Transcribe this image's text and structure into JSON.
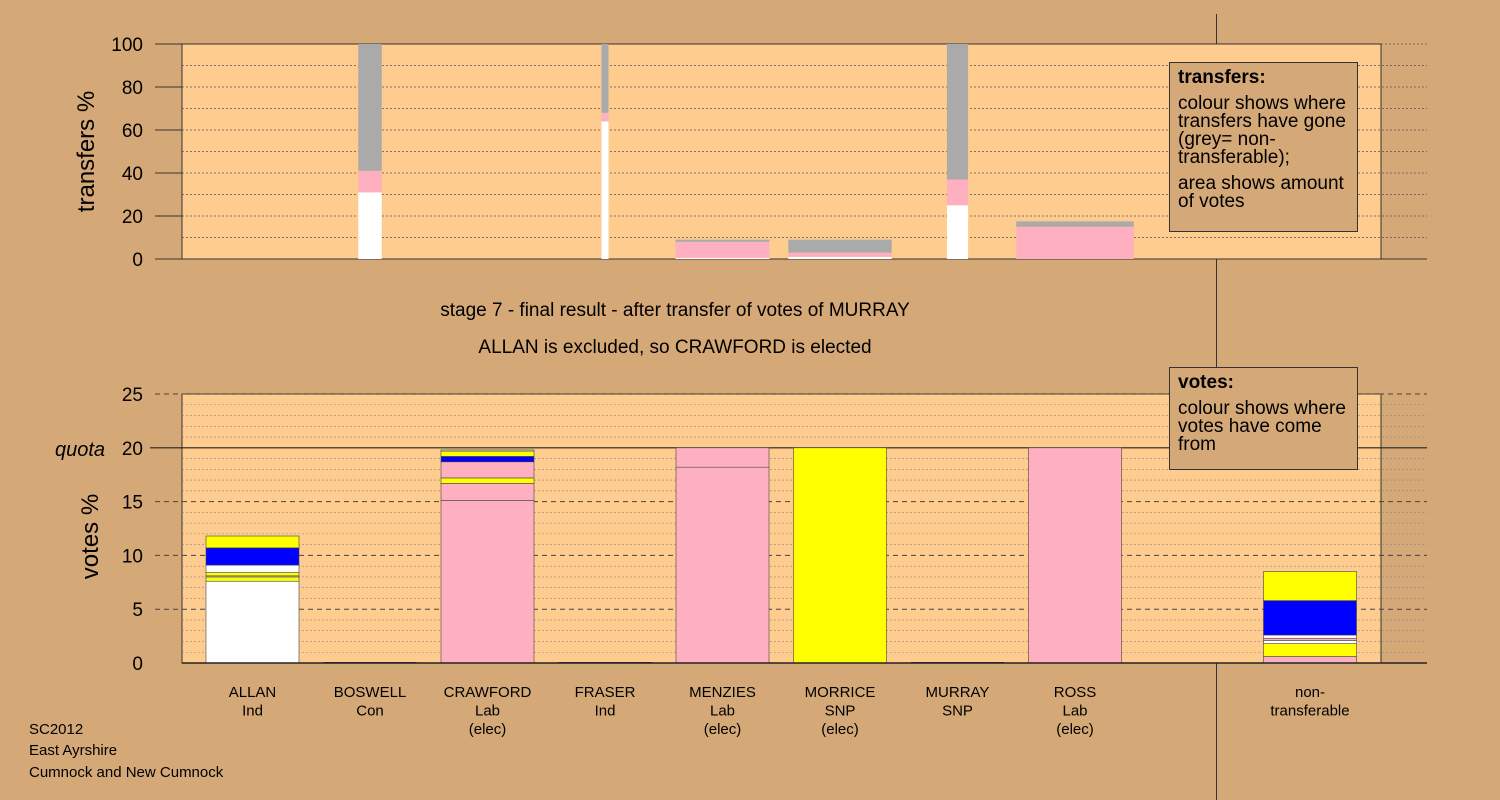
{
  "stage_title": "stage 7 - final result - after transfer of votes of MURRAY",
  "result_title": "ALLAN is excluded, so CRAWFORD is elected",
  "legend_transfers": {
    "title": "transfers:",
    "line1": "colour shows where transfers have gone (grey= non-transferable);",
    "line2": "area shows amount of votes"
  },
  "legend_votes": {
    "title": "votes:",
    "line1": "colour shows where votes have come from"
  },
  "footer": {
    "line1": "SC2012",
    "line2": "East Ayrshire",
    "line3": "Cumnock and New Cumnock"
  },
  "colors": {
    "background": "#d4a877",
    "plot_bg": "#ffcc8f",
    "Ind": "#ffffff",
    "Lab": "#ffb0c0",
    "SNP": "#ffff00",
    "Con": "#0000ff",
    "non_transferable": "#aaaaaa"
  },
  "chart_data": [
    {
      "type": "bar",
      "title": "",
      "ylabel": "transfers %",
      "ylim": [
        0,
        100
      ],
      "yticks": [
        0,
        20,
        40,
        60,
        80,
        100
      ],
      "grid": true,
      "note": "Stacked transfer bars per excluded candidate; bar width shows amount of votes transferred",
      "bars": [
        {
          "column": "BOSWELL",
          "width_votes": 1.0,
          "segments": [
            {
              "party": "Ind",
              "value": 31
            },
            {
              "party": "Lab",
              "value": 10
            },
            {
              "party": "non_transferable",
              "value": 59
            }
          ]
        },
        {
          "column": "FRASER",
          "width_votes": 0.3,
          "segments": [
            {
              "party": "Ind",
              "value": 64
            },
            {
              "party": "Lab",
              "value": 4
            },
            {
              "party": "non_transferable",
              "value": 32
            }
          ]
        },
        {
          "column": "MENZIES",
          "width_votes": 4.0,
          "segments": [
            {
              "party": "Ind",
              "value": 0.5
            },
            {
              "party": "Lab",
              "value": 7.5
            },
            {
              "party": "non_transferable",
              "value": 1
            }
          ]
        },
        {
          "column": "MORRICE",
          "width_votes": 4.4,
          "segments": [
            {
              "party": "Ind",
              "value": 1
            },
            {
              "party": "Lab",
              "value": 2
            },
            {
              "party": "non_transferable",
              "value": 6
            }
          ]
        },
        {
          "column": "MURRAY",
          "width_votes": 0.9,
          "segments": [
            {
              "party": "Ind",
              "value": 25
            },
            {
              "party": "Lab",
              "value": 12
            },
            {
              "party": "non_transferable",
              "value": 63
            }
          ]
        },
        {
          "column": "ROSS",
          "width_votes": 5.0,
          "segments": [
            {
              "party": "Lab",
              "value": 15
            },
            {
              "party": "non_transferable",
              "value": 2.5
            }
          ]
        }
      ]
    },
    {
      "type": "bar",
      "title": "",
      "ylabel": "votes %",
      "ylim": [
        0,
        25
      ],
      "yticks": [
        0,
        5,
        10,
        15,
        20,
        25
      ],
      "quota": 20,
      "quota_label": "quota",
      "grid": true,
      "categories": [
        "ALLAN",
        "BOSWELL",
        "CRAWFORD",
        "FRASER",
        "MENZIES",
        "MORRICE",
        "MURRAY",
        "ROSS",
        "",
        "non-transferable"
      ],
      "category_labels": [
        [
          "ALLAN",
          "Ind"
        ],
        [
          "BOSWELL",
          "Con"
        ],
        [
          "CRAWFORD",
          "Lab",
          "(elec)"
        ],
        [
          "FRASER",
          "Ind"
        ],
        [
          "MENZIES",
          "Lab",
          "(elec)"
        ],
        [
          "MORRICE",
          "SNP",
          "(elec)"
        ],
        [
          "MURRAY",
          "SNP"
        ],
        [
          "ROSS",
          "Lab",
          "(elec)"
        ],
        [],
        [
          "non-",
          "transferable"
        ]
      ],
      "stacks": [
        [
          {
            "party": "Ind",
            "value": 7.6
          },
          {
            "party": "SNP",
            "value": 0.4
          },
          {
            "party": "Ind",
            "value": 0.1
          },
          {
            "party": "SNP",
            "value": 0.3
          },
          {
            "party": "Ind",
            "value": 0.7
          },
          {
            "party": "Con",
            "value": 1.6
          },
          {
            "party": "SNP",
            "value": 1.1
          }
        ],
        [],
        [
          {
            "party": "Lab",
            "value": 15.1
          },
          {
            "party": "Lab",
            "value": 1.6
          },
          {
            "party": "SNP",
            "value": 0.5
          },
          {
            "party": "Lab",
            "value": 1.5
          },
          {
            "party": "Con",
            "value": 0.5
          },
          {
            "party": "SNP",
            "value": 0.5
          },
          {
            "party": "Ind",
            "value": 0.1
          }
        ],
        [],
        [
          {
            "party": "Lab",
            "value": 18.2
          },
          {
            "party": "Lab",
            "value": 1.8
          }
        ],
        [
          {
            "party": "SNP",
            "value": 20
          }
        ],
        [],
        [
          {
            "party": "Lab",
            "value": 20
          }
        ],
        [],
        [
          {
            "party": "Lab",
            "value": 0.6
          },
          {
            "party": "SNP",
            "value": 1.2
          },
          {
            "party": "Ind",
            "value": 0.3
          },
          {
            "party": "Lab",
            "value": 0.2
          },
          {
            "party": "Ind",
            "value": 0.3
          },
          {
            "party": "Con",
            "value": 3.2
          },
          {
            "party": "SNP",
            "value": 2.7
          }
        ]
      ]
    }
  ]
}
